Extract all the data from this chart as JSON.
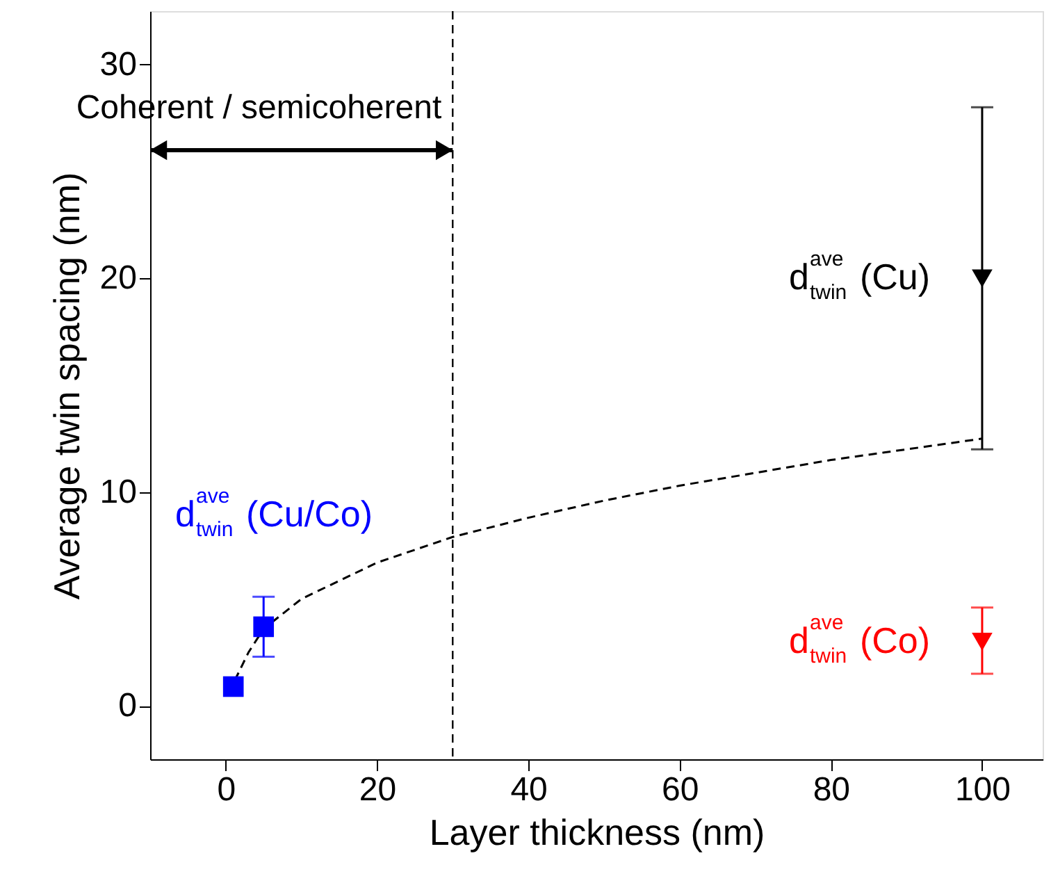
{
  "chart_data": {
    "type": "scatter",
    "xlabel": "Layer thickness (nm)",
    "ylabel": "Average twin spacing (nm)",
    "xlim": [
      -10,
      108
    ],
    "ylim": [
      -2.5,
      32.5
    ],
    "xticks": [
      0,
      20,
      40,
      60,
      80,
      100
    ],
    "yticks": [
      0,
      10,
      20,
      30
    ],
    "grid": false,
    "series": [
      {
        "type": "line",
        "color": "#000000",
        "line_style": "dashed",
        "marker": "none",
        "x": [
          1.2,
          3,
          5,
          10,
          20,
          30,
          40,
          50,
          60,
          70,
          80,
          90,
          100
        ],
        "values": [
          1.2,
          2.5,
          3.6,
          5,
          6.7,
          7.9,
          8.8,
          9.6,
          10.3,
          10.9,
          11.5,
          12,
          12.5
        ]
      },
      {
        "name": "d$^{ave}$$_{twin}$ (Cu/Co)",
        "color": "#0000ff",
        "marker": "square",
        "x": [
          1,
          5
        ],
        "values": [
          0.9,
          3.7
        ],
        "errors": [
          null,
          [
            2.3,
            5.1
          ]
        ]
      },
      {
        "name": "d$^{ave}$$_{twin}$ (Cu)",
        "color": "#000000",
        "marker": "triangle",
        "x": [
          100
        ],
        "values": [
          20
        ],
        "errors": [
          [
            12,
            28
          ]
        ]
      },
      {
        "name": "d$^{ave}$$_{twin}$ (Co)",
        "color": "#ff0000",
        "marker": "triangle",
        "x": [
          100
        ],
        "values": [
          3
        ],
        "errors": [
          [
            1.5,
            4.6
          ]
        ]
      }
    ],
    "ref_lines": [
      {
        "axis": "x",
        "value": 30,
        "color": "#000000",
        "line_style": "dashed"
      }
    ],
    "annotations": [
      "Coherent / semicoherent"
    ]
  }
}
